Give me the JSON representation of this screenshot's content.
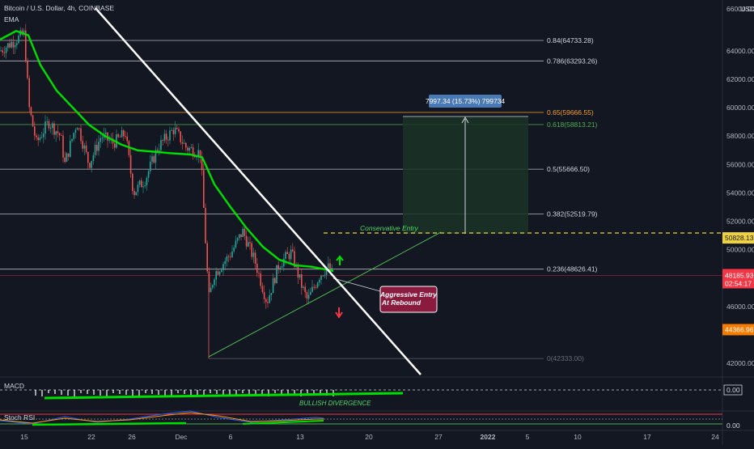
{
  "header": {
    "title": "Bitcoin / U.S. Dollar, 4h, COINBASE",
    "indicator": "EMA"
  },
  "price_axis": {
    "currency": "USD",
    "ticks": [
      "64000.00",
      "62000.00",
      "60000.00",
      "58000.00",
      "56000.00",
      "54000.00",
      "52000.00",
      "50000.00",
      "46000.00",
      "42000.00"
    ],
    "top_value": "66000.00"
  },
  "fib_levels": [
    {
      "label": "0.84(64733.28)",
      "price": 64733.28,
      "color": "#d1d4dc"
    },
    {
      "label": "0.786(63293.26)",
      "price": 63293.26,
      "color": "#d1d4dc"
    },
    {
      "label": "0.65(59666.55)",
      "price": 59666.55,
      "color": "#f59d32"
    },
    {
      "label": "0.618(58813.21)",
      "price": 58813.21,
      "color": "#4caf50"
    },
    {
      "label": "0.5(55666.50)",
      "price": 55666.5,
      "color": "#d1d4dc"
    },
    {
      "label": "0.382(52519.79)",
      "price": 52519.79,
      "color": "#d1d4dc"
    },
    {
      "label": "0.236(48626.41)",
      "price": 48626.41,
      "color": "#d1d4dc"
    },
    {
      "label": "0(42333.00)",
      "price": 42333.0,
      "color": "#6a6d78"
    }
  ],
  "price_tags": {
    "conservative": {
      "value": "50828.13",
      "price": 50828.13,
      "bg": "#f0d23c",
      "fg": "#131722"
    },
    "current": {
      "value": "48185.93",
      "countdown": "02:54:17",
      "price": 48185.93,
      "bg": "#f23645",
      "fg": "#ffffff"
    },
    "low": {
      "value": "44366.96",
      "price": 44366.96,
      "bg": "#f57c00",
      "fg": "#ffffff"
    }
  },
  "measure_box": {
    "label": "7997.34 (15.73%) 799734"
  },
  "annotations": {
    "conservative_entry": "Conservative Entry",
    "aggressive_entry_line1": "Aggressive Entry",
    "aggressive_entry_line2": "At Rebound",
    "bullish_divergence": "BULLISH DIVERGENCE"
  },
  "macd_panel": {
    "title": "MACD",
    "value": "0.00"
  },
  "stoch_panel": {
    "title": "Stoch RSI",
    "value": "0.00"
  },
  "time_axis": [
    {
      "label": "15",
      "bold": false
    },
    {
      "label": "22",
      "bold": false
    },
    {
      "label": "26",
      "bold": false
    },
    {
      "label": "Dec",
      "bold": false
    },
    {
      "label": "6",
      "bold": false
    },
    {
      "label": "13",
      "bold": false
    },
    {
      "label": "20",
      "bold": false
    },
    {
      "label": "27",
      "bold": false
    },
    {
      "label": "2022",
      "bold": true
    },
    {
      "label": "5",
      "bold": false
    },
    {
      "label": "10",
      "bold": false
    },
    {
      "label": "17",
      "bold": false
    },
    {
      "label": "24",
      "bold": false
    }
  ],
  "colors": {
    "background": "#131722",
    "up_candle": "#26a69a",
    "down_candle": "#ef5350",
    "ema": "#00e000",
    "trendline": "#ffffff",
    "support": "#4caf50",
    "measure_fill": "#1b3324",
    "label_box": "#4a7ab5",
    "aggressive_box": "#8b1a3f"
  }
}
